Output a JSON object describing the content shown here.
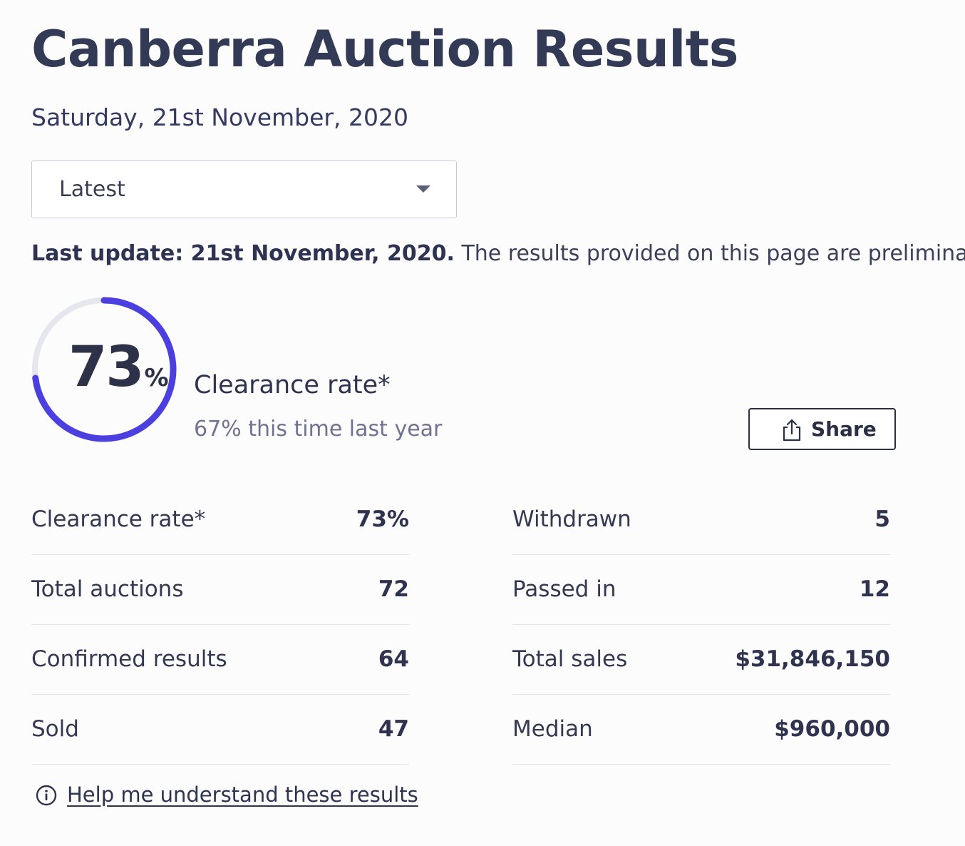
{
  "page": {
    "title": "Canberra Auction Results",
    "date": "Saturday, 21st November, 2020"
  },
  "period_select": {
    "selected": "Latest"
  },
  "update_notice": {
    "bold": "Last update: 21st November, 2020.",
    "text": " The results provided on this page are preliminary and cu"
  },
  "clearance": {
    "value": "73",
    "unit": "%",
    "fraction": 0.73,
    "label": "Clearance rate*",
    "last_year": "67% this time last year",
    "accent_color": "#4b3fe0",
    "track_color": "#e6e7ee"
  },
  "share_button": {
    "label": "Share",
    "icon": "share-icon"
  },
  "stats_left": [
    {
      "label": "Clearance rate*",
      "value": "73%"
    },
    {
      "label": "Total auctions",
      "value": "72"
    },
    {
      "label": "Confirmed results",
      "value": "64"
    },
    {
      "label": "Sold",
      "value": "47"
    }
  ],
  "stats_right": [
    {
      "label": "Withdrawn",
      "value": "5"
    },
    {
      "label": "Passed in",
      "value": "12"
    },
    {
      "label": "Total sales",
      "value": "$31,846,150"
    },
    {
      "label": "Median",
      "value": "$960,000"
    }
  ],
  "help_link": {
    "label": "Help me understand these results",
    "icon": "info-icon"
  }
}
